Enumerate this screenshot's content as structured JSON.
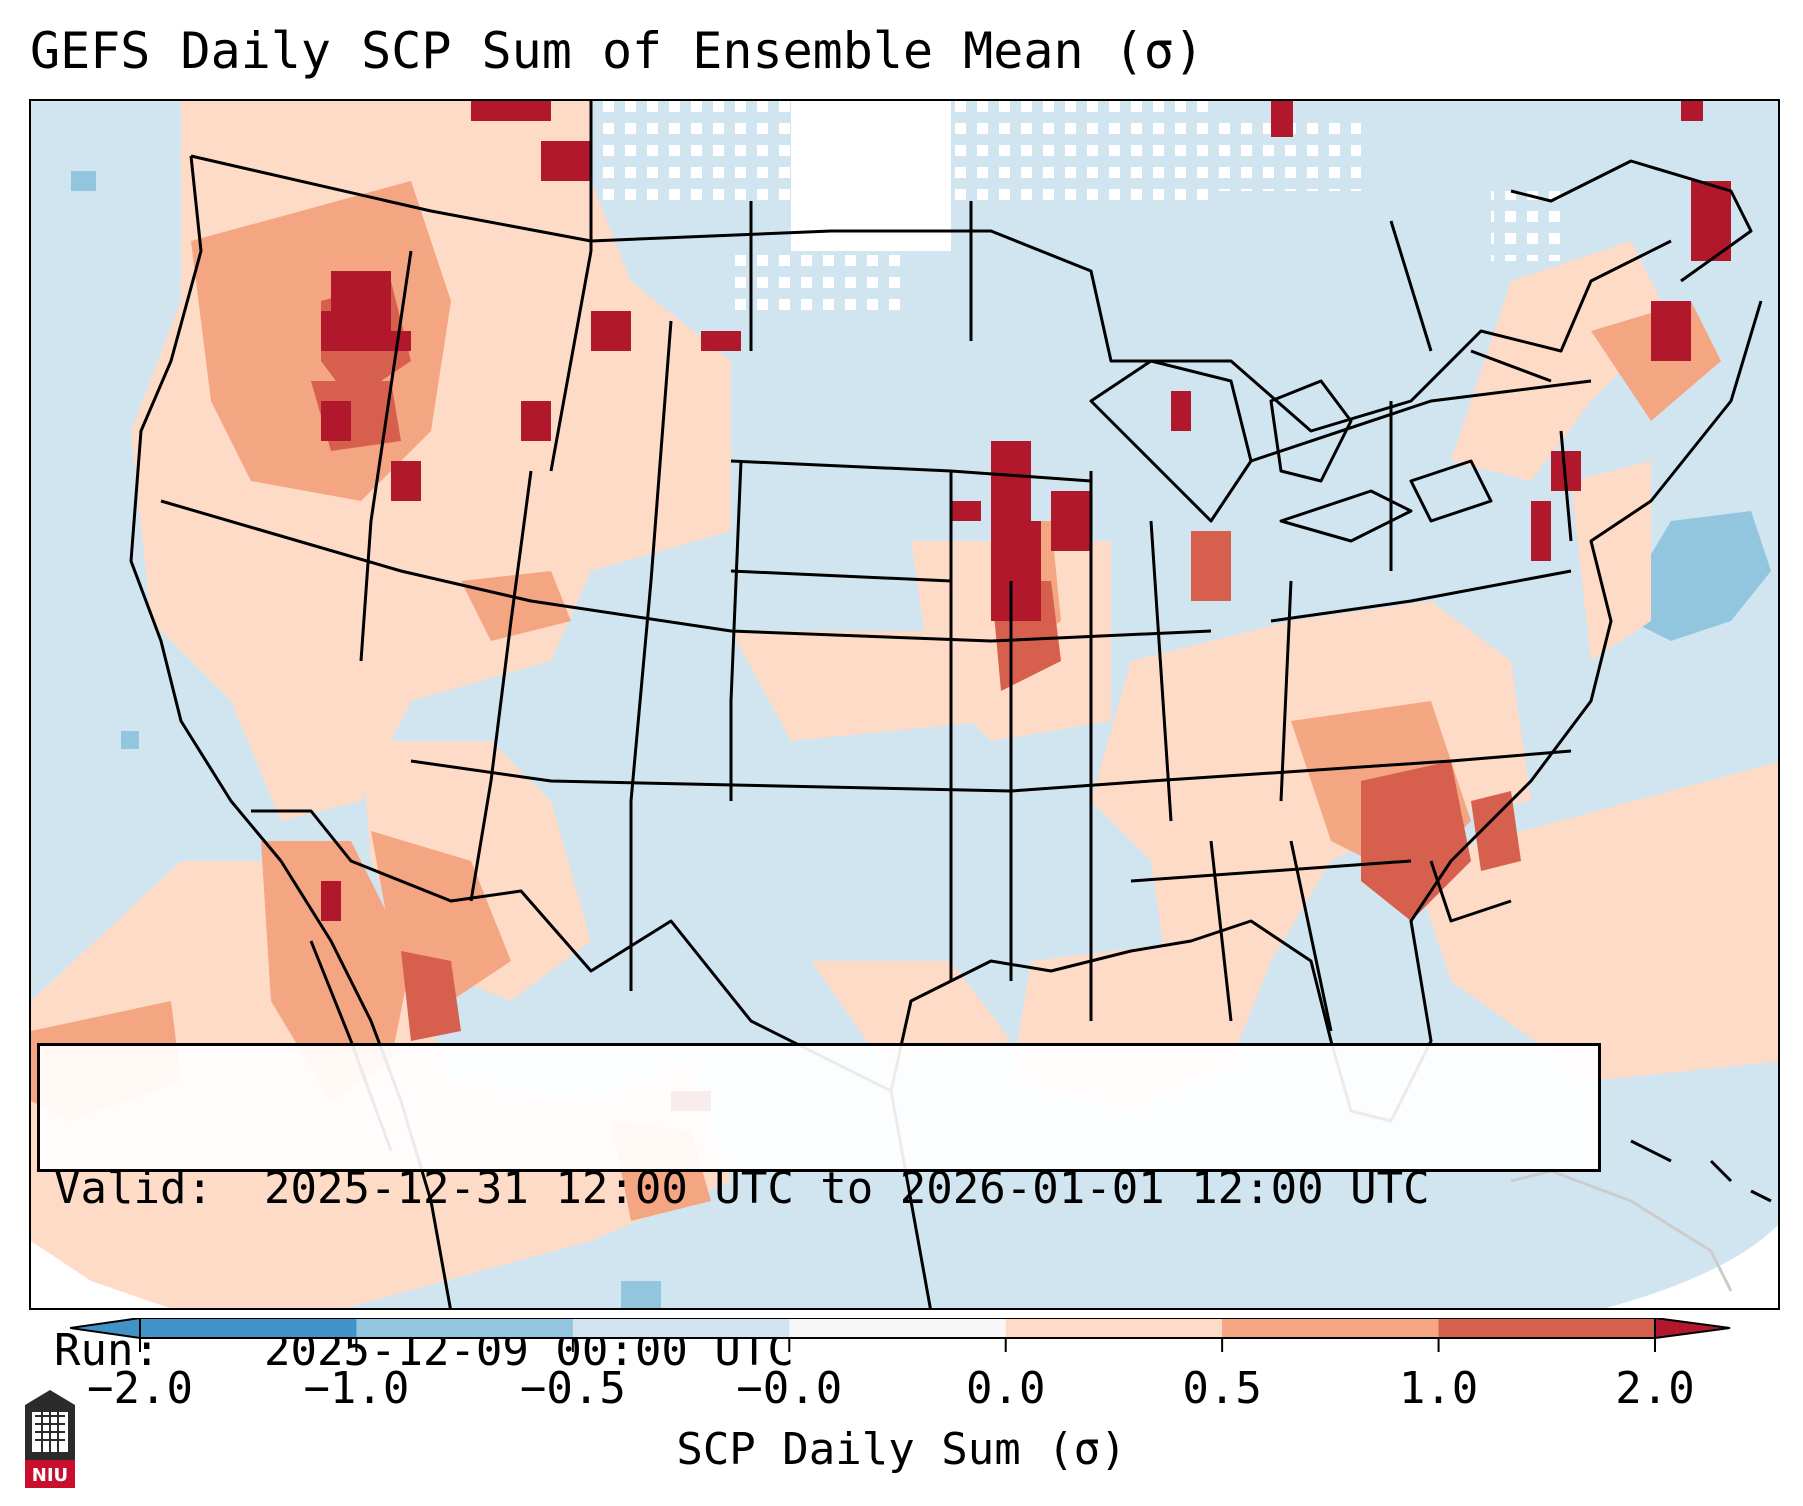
{
  "title": "GEFS Daily SCP Sum of Ensemble Mean (σ)",
  "info": {
    "valid_label": "Valid:",
    "valid_value": "2025-12-31 12:00 UTC to 2026-01-01 12:00 UTC",
    "run_label": "Run:",
    "run_value": "2025-12-09 00:00 UTC"
  },
  "colorbar": {
    "label": "SCP Daily Sum (σ)",
    "ticks": [
      "−2.0",
      "−1.0",
      "−0.5",
      "−0.0",
      "0.0",
      "0.5",
      "1.0",
      "2.0"
    ],
    "colors": [
      "#4292c6",
      "#92c5de",
      "#d1e5f0",
      "#f7f7f7",
      "#fddbc7",
      "#f4a582",
      "#d6604d",
      "#b2182b"
    ],
    "extend": "both"
  },
  "legend_colors": {
    "strong_negative": "#92c5de",
    "weak_negative": "#d1e5f0",
    "neutral": "#ffffff",
    "weak_positive": "#fddbc7",
    "moderate_positive": "#f4a582",
    "strong_positive": "#d6604d",
    "extreme_positive": "#b2182b"
  },
  "logo": {
    "text": "NIU",
    "icon": "university-seal-icon"
  }
}
